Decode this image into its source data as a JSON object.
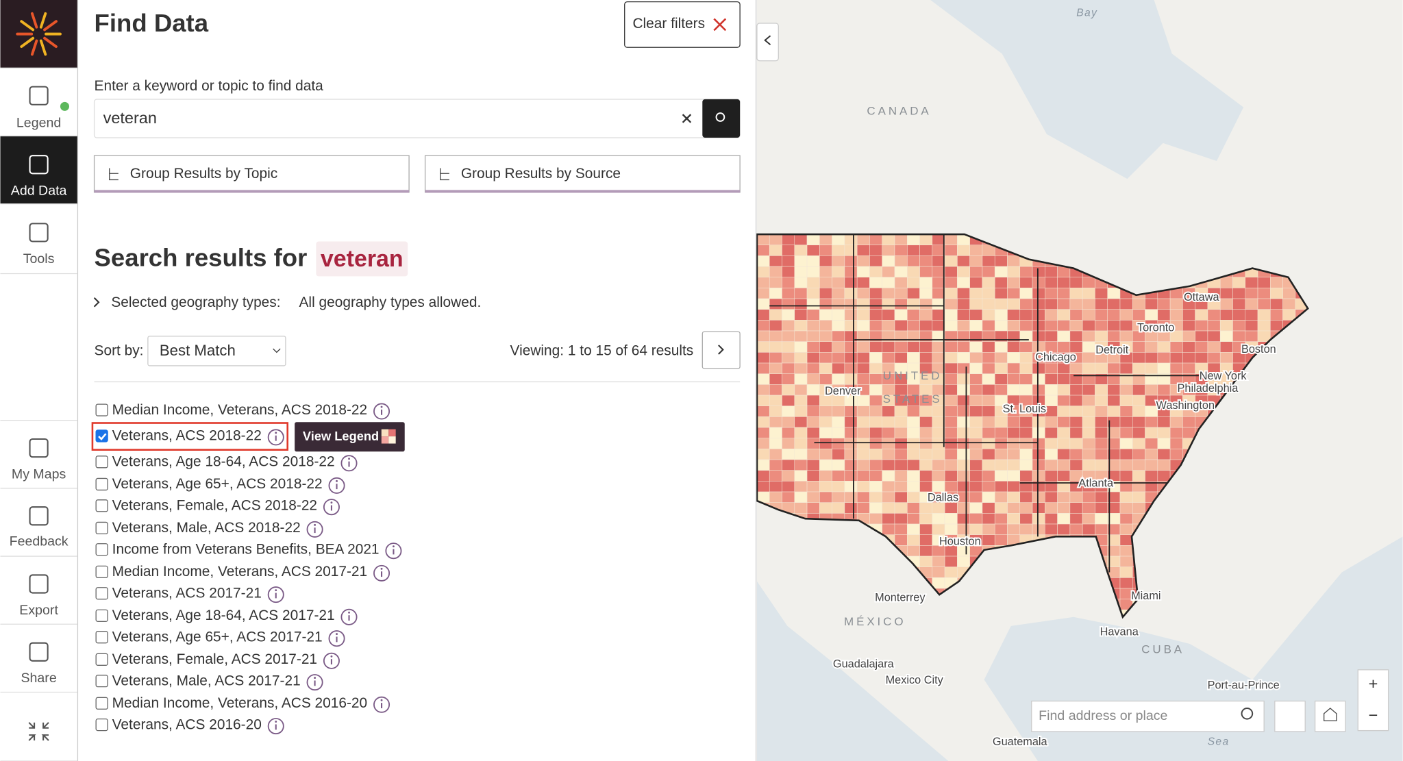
{
  "sidebar": {
    "items": [
      "Legend",
      "Add Data",
      "Tools",
      "My Maps",
      "Feedback",
      "Export",
      "Share"
    ]
  },
  "panel": {
    "title": "Find Data",
    "clear_filters": "Clear filters",
    "search_label": "Enter a keyword or topic to find data",
    "search_value": "veteran",
    "group_topic": "Group Results by Topic",
    "group_source": "Group Results by Source",
    "results_heading": "Search results for",
    "results_term": "veteran",
    "geo_label": "Selected geography types:",
    "geo_value": "All geography types allowed.",
    "sort_label": "Sort by:",
    "sort_value": "Best Match",
    "viewing": "Viewing: 1 to 15 of 64 results",
    "view_legend": "View Legend",
    "results": [
      {
        "label": "Median Income, Veterans, ACS 2018-22",
        "checked": false
      },
      {
        "label": "Veterans, ACS 2018-22",
        "checked": true
      },
      {
        "label": "Veterans, Age 18-64, ACS 2018-22",
        "checked": false
      },
      {
        "label": "Veterans, Age 65+, ACS 2018-22",
        "checked": false
      },
      {
        "label": "Veterans, Female, ACS 2018-22",
        "checked": false
      },
      {
        "label": "Veterans, Male, ACS 2018-22",
        "checked": false
      },
      {
        "label": "Income from Veterans Benefits, BEA 2021",
        "checked": false
      },
      {
        "label": "Median Income, Veterans, ACS 2017-21",
        "checked": false
      },
      {
        "label": "Veterans, ACS 2017-21",
        "checked": false
      },
      {
        "label": "Veterans, Age 18-64, ACS 2017-21",
        "checked": false
      },
      {
        "label": "Veterans, Age 65+, ACS 2017-21",
        "checked": false
      },
      {
        "label": "Veterans, Female, ACS 2017-21",
        "checked": false
      },
      {
        "label": "Veterans, Male, ACS 2017-21",
        "checked": false
      },
      {
        "label": "Median Income, Veterans, ACS 2016-20",
        "checked": false
      },
      {
        "label": "Veterans, ACS 2016-20",
        "checked": false
      }
    ]
  },
  "map": {
    "search_placeholder": "Find address or place",
    "labels": [
      "Bay",
      "CANADA",
      "UNITED",
      "STATES",
      "Ottawa",
      "Toronto",
      "Chicago",
      "Detroit",
      "Boston",
      "New York",
      "Philadelphia",
      "Washington",
      "St. Louis",
      "Denver",
      "Dallas",
      "Houston",
      "Atlanta",
      "Miami",
      "Monterrey",
      "MÉXICO",
      "Havana",
      "CUBA",
      "Guadalajara",
      "Mexico City",
      "Guatemala",
      "Port-au-Prince",
      "Sea"
    ]
  }
}
